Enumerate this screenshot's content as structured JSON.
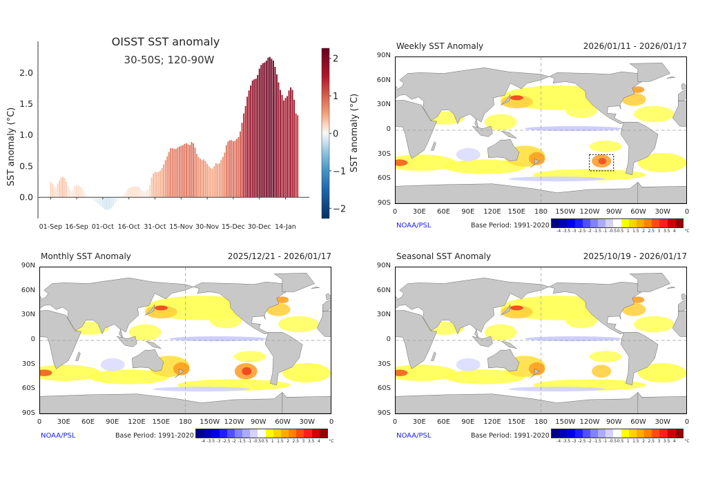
{
  "chart_data": {
    "type": "bar",
    "title": "OISST SST anomaly",
    "subtitle": "30-50S; 120-90W",
    "ylabel": "SST anomaly (°C)",
    "colorbar_label": "SST anomaly (°C)",
    "ylim": [
      -0.34,
      2.4
    ],
    "yticks": [
      "2.0",
      "1.5",
      "1.0",
      "0.5",
      "0.0"
    ],
    "ytick_values": [
      2.0,
      1.5,
      1.0,
      0.5,
      0.0
    ],
    "colorbar_ticks": [
      "2",
      "1",
      "0",
      "−1",
      "−2"
    ],
    "colorbar_tick_values": [
      2,
      1,
      0,
      -1,
      -2
    ],
    "colorbar_range": [
      -2.27,
      2.27
    ],
    "colormap": "RdBu_r",
    "xticks": [
      "01-Sep",
      "16-Sep",
      "01-Oct",
      "16-Oct",
      "31-Oct",
      "15-Nov",
      "30-Nov",
      "15-Dec",
      "30-Dec",
      "14-Jan"
    ],
    "xtick_interval_days": 15,
    "grid": false,
    "values": [
      0.25,
      0.22,
      0.18,
      0.16,
      0.22,
      0.27,
      0.32,
      0.33,
      0.31,
      0.25,
      0.18,
      0.13,
      0.1,
      0.12,
      0.18,
      0.2,
      0.19,
      0.17,
      0.15,
      0.1,
      0.06,
      0.03,
      0.01,
      -0.02,
      -0.04,
      -0.06,
      -0.08,
      -0.1,
      -0.12,
      -0.15,
      -0.17,
      -0.19,
      -0.2,
      -0.2,
      -0.19,
      -0.17,
      -0.14,
      -0.1,
      -0.07,
      -0.04,
      -0.02,
      0.02,
      0.05,
      0.08,
      0.12,
      0.15,
      0.16,
      0.17,
      0.18,
      0.17,
      0.17,
      0.16,
      0.12,
      0.1,
      0.09,
      0.1,
      0.13,
      0.2,
      0.32,
      0.38,
      0.41,
      0.4,
      0.41,
      0.43,
      0.47,
      0.53,
      0.6,
      0.66,
      0.73,
      0.79,
      0.79,
      0.78,
      0.78,
      0.8,
      0.82,
      0.83,
      0.84,
      0.86,
      0.87,
      0.85,
      0.84,
      0.89,
      0.87,
      0.8,
      0.7,
      0.65,
      0.62,
      0.6,
      0.61,
      0.58,
      0.54,
      0.5,
      0.47,
      0.46,
      0.5,
      0.55,
      0.54,
      0.55,
      0.6,
      0.65,
      0.72,
      0.84,
      0.9,
      0.92,
      0.92,
      0.9,
      0.91,
      0.94,
      0.97,
      1.06,
      1.2,
      1.35,
      1.47,
      1.62,
      1.72,
      1.8,
      1.88,
      1.9,
      1.91,
      1.97,
      2.07,
      2.13,
      2.16,
      2.17,
      2.2,
      2.25,
      2.26,
      2.23,
      2.2,
      2.1,
      1.98,
      1.85,
      1.73,
      1.65,
      1.56,
      1.6,
      1.63,
      1.72,
      1.77,
      1.73,
      1.57,
      1.35,
      1.32
    ]
  },
  "maps": [
    {
      "title": "Weekly SST Anomaly",
      "dates": "2026/01/11 - 2026/01/17"
    },
    {
      "title": "Monthly SST Anomaly",
      "dates": "2025/12/21 - 2026/01/17"
    },
    {
      "title": "Seasonal SST Anomaly",
      "dates": "2025/10/19 - 2026/01/17"
    }
  ],
  "map_common": {
    "lat_ticks": [
      "90N",
      "60N",
      "30N",
      "0",
      "30S",
      "60S",
      "90S"
    ],
    "lon_ticks": [
      "0",
      "30E",
      "60E",
      "90E",
      "120E",
      "150E",
      "180",
      "150W",
      "120W",
      "90W",
      "60W",
      "30W",
      "0"
    ],
    "credit": "NOAA/PSL",
    "base_period": "Base Period: 1991-2020",
    "colorbar_labels": [
      "-4",
      "-3.5",
      "-3",
      "-2.5",
      "-2",
      "-1.5",
      "-1",
      "-0.5",
      "0.5",
      "1",
      "1.5",
      "2",
      "2.5",
      "3",
      "3.5",
      "4"
    ],
    "colorbar_unit": "°C",
    "colorbar_colors": [
      "#00008c",
      "#0000b4",
      "#0000e6",
      "#1e1eff",
      "#5050ff",
      "#8282ff",
      "#aaaaff",
      "#d2d2ff",
      "#ffffff",
      "#ffff00",
      "#ffd200",
      "#ffaa00",
      "#ff8200",
      "#ff4b14",
      "#ff1e1e",
      "#d20000",
      "#960000"
    ]
  }
}
